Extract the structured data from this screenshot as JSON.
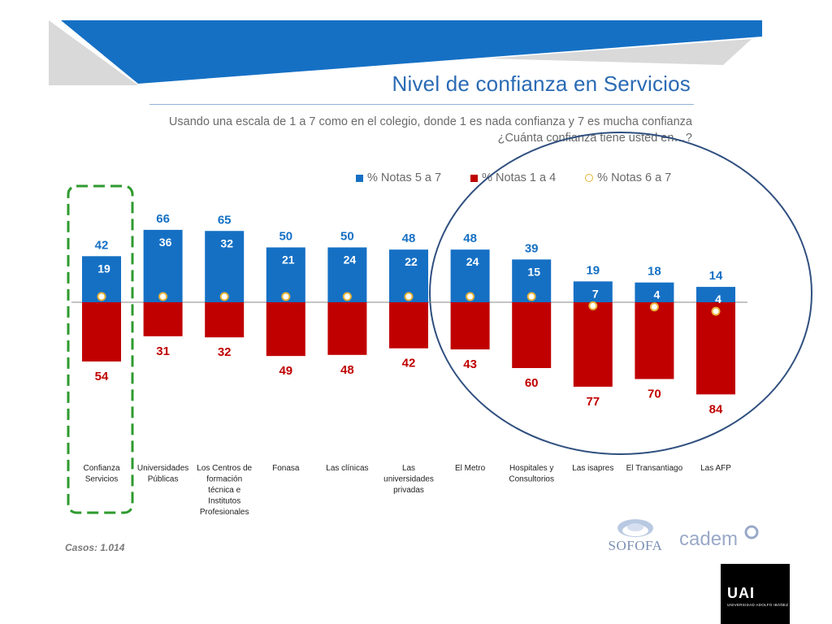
{
  "title": "Nivel de confianza en Servicios",
  "subtitle": {
    "line1": "Usando una escala de 1 a 7 como en el colegio, donde 1 es nada confianza y 7 es mucha confianza",
    "line2": "¿Cuánta confianza tiene usted en…?"
  },
  "legend": {
    "positive": "% Notas 5 a 7",
    "negative": "% Notas 1 a 4",
    "top": "% Notas 6 a 7"
  },
  "colors": {
    "positive": "#1570c4",
    "negative": "#c00000",
    "dot": "#e8b33a",
    "highlight_box": "#2e9a2e",
    "circle": "#2f4f7f",
    "banner": "#1570c4"
  },
  "cases": "Casos: 1.014",
  "logos": {
    "sofofa": "SOFOFA",
    "cadem": "cadem",
    "uai_mark": "UAI",
    "uai_text": "UNIVERSIDAD ADOLFO IBÁÑEZ"
  },
  "chart_data": {
    "type": "bar",
    "categories": [
      "Confianza Servicios",
      "Universidades Públicas",
      "Los Centros de formación técnica e Institutos Profesionales",
      "Fonasa",
      "Las clínicas",
      "Las universidades privadas",
      "El Metro",
      "Hospitales y Consultorios",
      "Las isapres",
      "El Transantiago",
      "Las AFP"
    ],
    "category_lines": [
      [
        "Confianza",
        "Servicios"
      ],
      [
        "Universidades",
        "Públicas"
      ],
      [
        "Los Centros de",
        "formación",
        "técnica e",
        "Institutos",
        "Profesionales"
      ],
      [
        "Fonasa"
      ],
      [
        "Las clínicas"
      ],
      [
        "Las",
        "universidades",
        "privadas"
      ],
      [
        "El Metro"
      ],
      [
        "Hospitales y",
        "Consultorios"
      ],
      [
        "Las isapres"
      ],
      [
        "El Transantiago"
      ],
      [
        "Las AFP"
      ]
    ],
    "series": [
      {
        "name": "% Notas 5 a 7",
        "values": [
          42,
          66,
          65,
          50,
          50,
          48,
          48,
          39,
          19,
          18,
          14
        ]
      },
      {
        "name": "% Notas 1 a 4",
        "values": [
          54,
          31,
          32,
          49,
          48,
          42,
          43,
          60,
          77,
          70,
          84
        ]
      },
      {
        "name": "% Notas 6 a 7",
        "values": [
          19,
          36,
          32,
          21,
          24,
          22,
          24,
          15,
          7,
          4,
          4
        ]
      }
    ],
    "highlighted_category": "Confianza Servicios",
    "circled_categories": [
      "El Metro",
      "Hospitales y Consultorios",
      "Las isapres",
      "El Transantiago",
      "Las AFP"
    ]
  }
}
